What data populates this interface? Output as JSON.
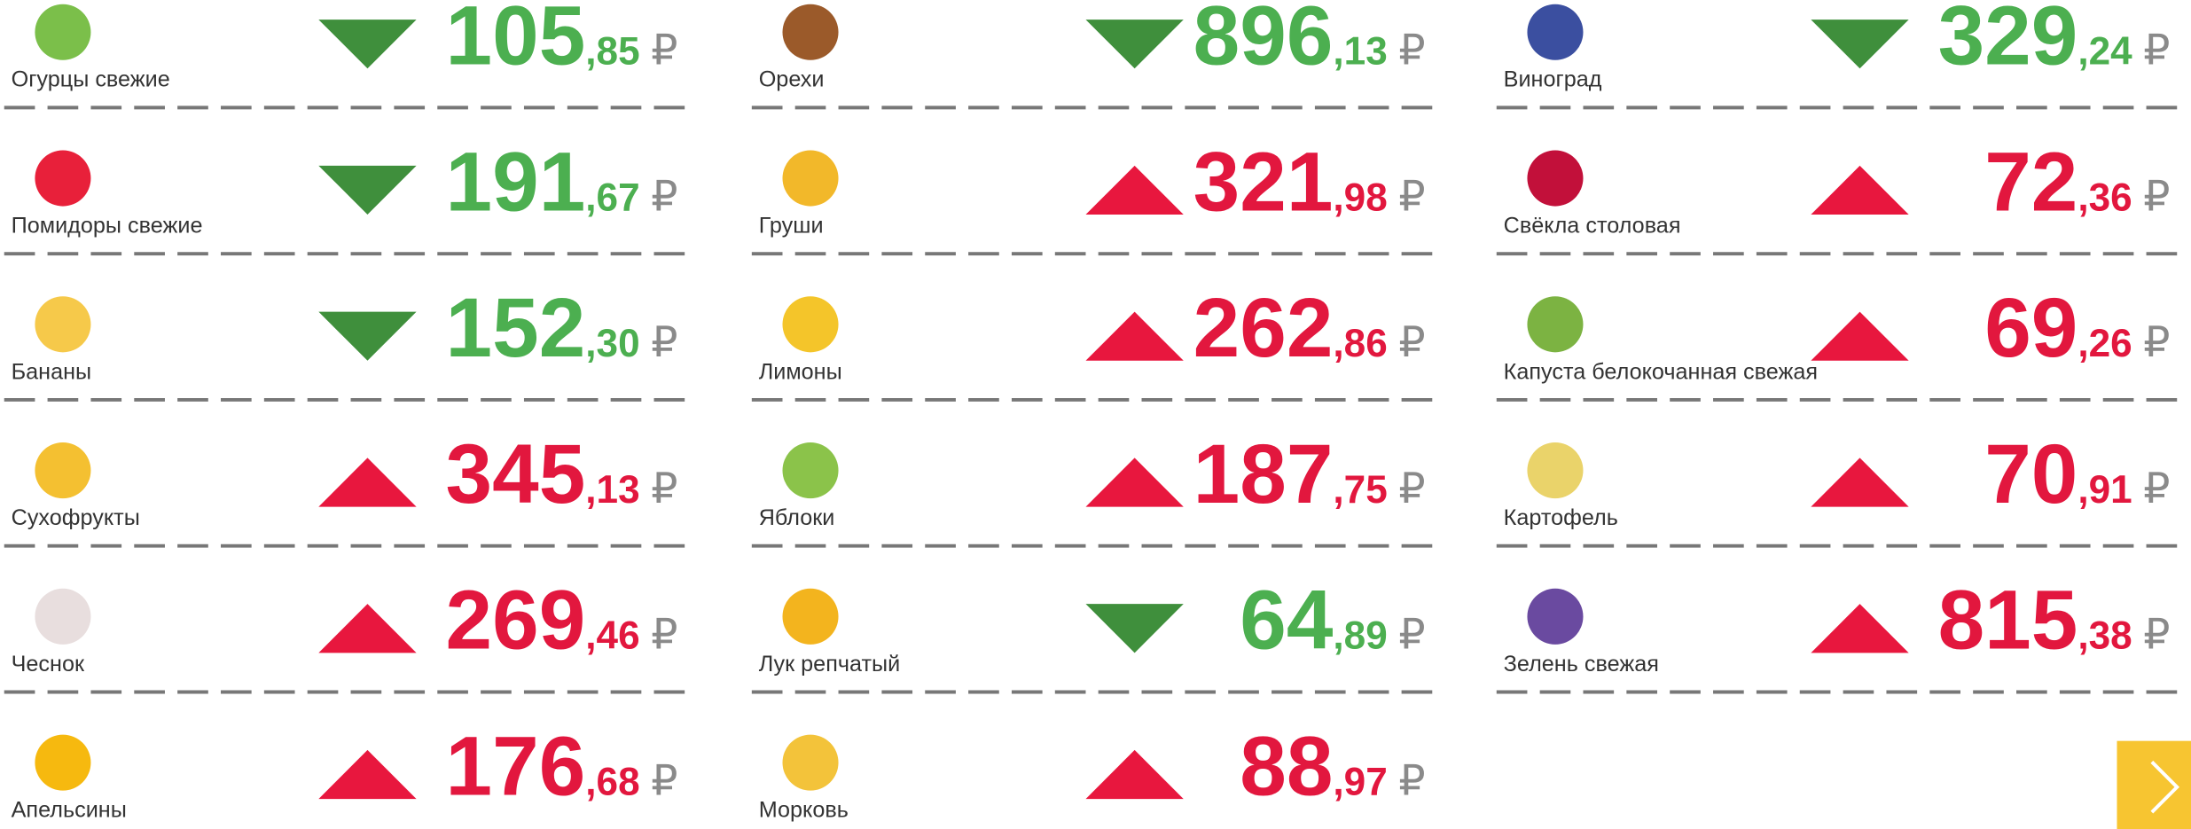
{
  "currency": "₽",
  "columns": [
    [
      {
        "name": "Огурцы свежие",
        "rub": "105",
        "kop": ",85",
        "trend": "down"
      },
      {
        "name": "Помидоры свежие",
        "rub": "191",
        "kop": ",67",
        "trend": "down"
      },
      {
        "name": "Бананы",
        "rub": "152",
        "kop": ",30",
        "trend": "down"
      },
      {
        "name": "Сухофрукты",
        "rub": "345",
        "kop": ",13",
        "trend": "up"
      },
      {
        "name": "Чеснок",
        "rub": "269",
        "kop": ",46",
        "trend": "up"
      },
      {
        "name": "Апельсины",
        "rub": "176",
        "kop": ",68",
        "trend": "up"
      }
    ],
    [
      {
        "name": "Орехи",
        "rub": "896",
        "kop": ",13",
        "trend": "down"
      },
      {
        "name": "Груши",
        "rub": "321",
        "kop": ",98",
        "trend": "up"
      },
      {
        "name": "Лимоны",
        "rub": "262",
        "kop": ",86",
        "trend": "up"
      },
      {
        "name": "Яблоки",
        "rub": "187",
        "kop": ",75",
        "trend": "up"
      },
      {
        "name": "Лук репчатый",
        "rub": "64",
        "kop": ",89",
        "trend": "down"
      },
      {
        "name": "Морковь",
        "rub": "88",
        "kop": ",97",
        "trend": "up"
      }
    ],
    [
      {
        "name": "Виноград",
        "rub": "329",
        "kop": ",24",
        "trend": "down"
      },
      {
        "name": "Свёкла столовая",
        "rub": "72",
        "kop": ",36",
        "trend": "up"
      },
      {
        "name": "Капуста белокочанная свежая",
        "rub": "69",
        "kop": ",26",
        "trend": "up"
      },
      {
        "name": "Картофель",
        "rub": "70",
        "kop": ",91",
        "trend": "up"
      },
      {
        "name": "Зелень свежая",
        "rub": "815",
        "kop": ",38",
        "trend": "up"
      }
    ]
  ]
}
